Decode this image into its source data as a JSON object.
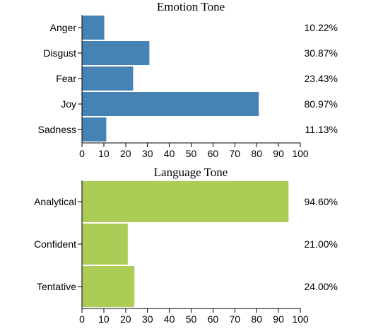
{
  "chart_data": [
    {
      "type": "bar",
      "orientation": "horizontal",
      "title": "Emotion Tone",
      "categories": [
        "Anger",
        "Disgust",
        "Fear",
        "Joy",
        "Sadness"
      ],
      "values": [
        10.22,
        30.87,
        23.43,
        80.97,
        11.13
      ],
      "value_labels": [
        "10.22%",
        "30.87%",
        "23.43%",
        "80.97%",
        "11.13%"
      ],
      "xlim": [
        0,
        100
      ],
      "xticks": [
        0,
        10,
        20,
        30,
        40,
        50,
        60,
        70,
        80,
        90,
        100
      ],
      "color": "#4682b4",
      "grid": false,
      "legend": "none"
    },
    {
      "type": "bar",
      "orientation": "horizontal",
      "title": "Language Tone",
      "categories": [
        "Analytical",
        "Confident",
        "Tentative"
      ],
      "values": [
        94.6,
        21.0,
        24.0
      ],
      "value_labels": [
        "94.60%",
        "21.00%",
        "24.00%"
      ],
      "xlim": [
        0,
        100
      ],
      "xticks": [
        0,
        10,
        20,
        30,
        40,
        50,
        60,
        70,
        80,
        90,
        100
      ],
      "color": "#abcd56",
      "grid": false,
      "legend": "none"
    }
  ]
}
